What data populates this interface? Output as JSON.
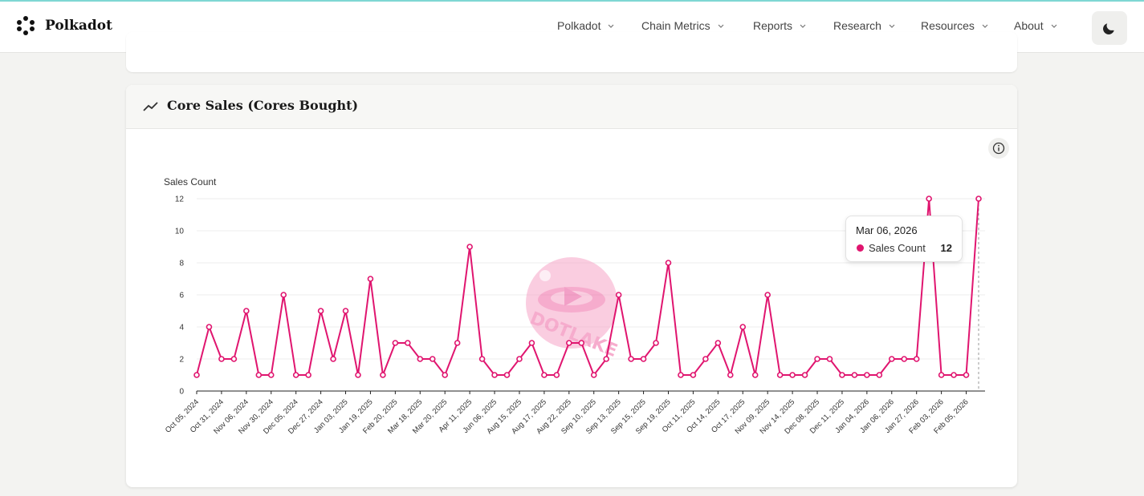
{
  "brand": {
    "name": "Polkadot"
  },
  "nav": {
    "items": [
      {
        "label": "Polkadot"
      },
      {
        "label": "Chain Metrics"
      },
      {
        "label": "Reports"
      },
      {
        "label": "Research"
      },
      {
        "label": "Resources"
      },
      {
        "label": "About"
      }
    ]
  },
  "card": {
    "title": "Core Sales (Cores Bought)"
  },
  "tooltip": {
    "date": "Mar 06, 2026",
    "series": "Sales Count",
    "value": "12"
  },
  "watermark": {
    "text": "DOTLAKE"
  },
  "colors": {
    "accent": "#e0156f",
    "text": "#222222"
  },
  "chart_data": {
    "type": "line",
    "ylabel": "Sales Count",
    "ylim": [
      0,
      12
    ],
    "yticks": [
      0,
      2,
      4,
      6,
      8,
      10,
      12
    ],
    "grid": true,
    "tick_labels": [
      "Oct 05, 2024",
      "Oct 31, 2024",
      "Nov 06, 2024",
      "Nov 30, 2024",
      "Dec 05, 2024",
      "Dec 27, 2024",
      "Jan 03, 2025",
      "Jan 19, 2025",
      "Feb 20, 2025",
      "Mar 18, 2025",
      "Mar 20, 2025",
      "Apr 11, 2025",
      "Jun 06, 2025",
      "Aug 15, 2025",
      "Aug 17, 2025",
      "Aug 22, 2025",
      "Sep 10, 2025",
      "Sep 13, 2025",
      "Sep 15, 2025",
      "Sep 19, 2025",
      "Oct 11, 2025",
      "Oct 14, 2025",
      "Oct 17, 2025",
      "Nov 09, 2025",
      "Nov 14, 2025",
      "Dec 08, 2025",
      "Dec 11, 2025",
      "Jan 04, 2026",
      "Jan 06, 2026",
      "Jan 27, 2026",
      "Feb 03, 2026",
      "Feb 05, 2026"
    ],
    "series": [
      {
        "name": "Sales Count",
        "values": [
          1,
          4,
          2,
          2,
          5,
          1,
          1,
          6,
          1,
          1,
          5,
          2,
          5,
          1,
          7,
          1,
          3,
          3,
          2,
          2,
          1,
          3,
          9,
          2,
          1,
          1,
          2,
          3,
          1,
          1,
          3,
          3,
          1,
          2,
          6,
          2,
          2,
          3,
          8,
          1,
          1,
          2,
          3,
          1,
          4,
          1,
          6,
          1,
          1,
          1,
          2,
          2,
          1,
          1,
          1,
          1,
          2,
          2,
          2,
          12,
          1,
          1,
          1,
          12
        ]
      }
    ]
  }
}
